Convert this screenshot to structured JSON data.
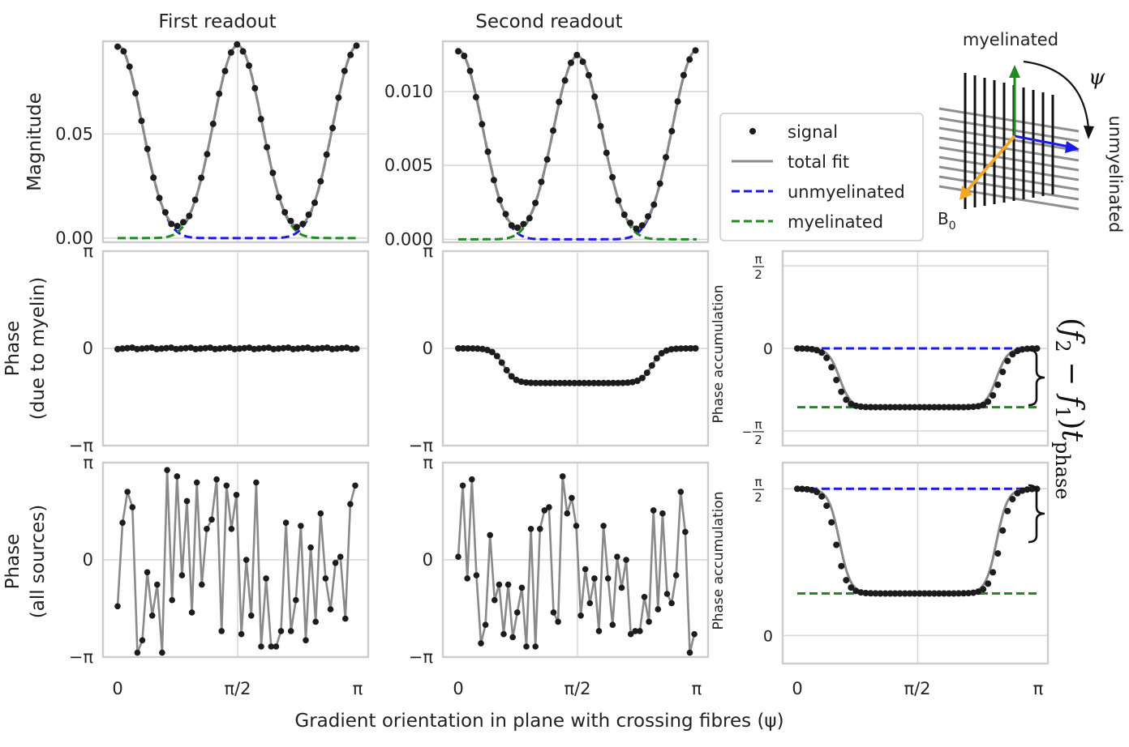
{
  "figure": {
    "col_titles": [
      "First readout",
      "Second readout"
    ],
    "row_labels": {
      "magnitude": [
        "Magnitude"
      ],
      "phase_myelin": [
        "Phase",
        "(due to myelin)"
      ],
      "phase_all": [
        "Phase",
        "(all sources)"
      ]
    },
    "accumulation_label": "Phase accumulation",
    "xlabel": "Gradient orientation in plane with crossing fibres (ψ)",
    "x_ticks": [
      "0",
      "π/2",
      "π"
    ],
    "phase_ticks": [
      "π",
      "0",
      "−π"
    ],
    "half_pi_ticks": {
      "num": "π",
      "den": "2",
      "neg": "−",
      "zero": "0"
    },
    "brace_formula": {
      "open": "(",
      "f2": "f",
      "sub2": "2",
      "minus": " − ",
      "f1": "f",
      "sub1": "1",
      "close": ")",
      "t": "t",
      "tsub": "phase"
    }
  },
  "legend": {
    "signal": "signal",
    "total_fit": "total fit",
    "unmyelinated": "unmyelinated",
    "myelinated": "myelinated"
  },
  "diagram": {
    "myelinated_label": "myelinated",
    "unmyelinated_label": "unmyelinated",
    "psi_label": "ψ",
    "b0_label": "B",
    "b0_sub": "0"
  },
  "colors": {
    "signal": "#1c1c1c",
    "fit": "#8a8a8a",
    "unmyelinated": "#1a1aee",
    "myelinated": "#1f8a1f",
    "b0": "#f5a623"
  },
  "chart_data": [
    {
      "id": "mag1",
      "type": "line",
      "title": "First readout",
      "ylabel": "Magnitude",
      "x_range": [
        0,
        3.1416
      ],
      "ylim": [
        -0.002,
        0.0945
      ],
      "yticks": [
        0.0,
        0.05
      ],
      "yticklabels": [
        "0.00",
        "0.05"
      ],
      "model": {
        "unmyelinated_peak": 0.0925,
        "myelinated_peak": 0.0925,
        "exponent": 10
      },
      "series": [
        "signal",
        "total fit",
        "unmyelinated",
        "myelinated"
      ]
    },
    {
      "id": "mag2",
      "type": "line",
      "title": "Second readout",
      "ylabel": "",
      "x_range": [
        0,
        3.1416
      ],
      "ylim": [
        -0.0002,
        0.0134
      ],
      "yticks": [
        0.0,
        0.005,
        0.01
      ],
      "yticklabels": [
        "0.000",
        "0.005",
        "0.010"
      ],
      "model": {
        "unmyelinated_peak": 0.0128,
        "myelinated_peak": 0.0124,
        "exponent": 10
      },
      "series": [
        "signal",
        "total fit",
        "unmyelinated",
        "myelinated"
      ]
    },
    {
      "id": "pm1",
      "type": "line",
      "ylabel": "Phase (due to myelin)",
      "x_range": [
        0,
        3.1416
      ],
      "ylim": [
        -3.1416,
        3.1416
      ],
      "values_summary": "constant 0 across all orientations",
      "plateau": 0.0
    },
    {
      "id": "pm2",
      "type": "line",
      "ylabel": "",
      "x_range": [
        0,
        3.1416
      ],
      "ylim": [
        -3.1416,
        3.1416
      ],
      "values_summary": "0 at edges, dips to about -1.12 around pi/2",
      "plateau": -1.12
    },
    {
      "id": "acc1",
      "type": "line",
      "ylabel": "Phase accumulation",
      "x_range": [
        0,
        3.1416
      ],
      "ylim": [
        -1.85,
        1.85
      ],
      "unmyelinated_level": 0.0,
      "myelinated_level": -1.12,
      "series": [
        "signal",
        "total fit",
        "unmyelinated",
        "myelinated"
      ]
    },
    {
      "id": "pa1",
      "type": "line",
      "ylabel": "Phase (all sources)",
      "x_range": [
        0,
        3.1416
      ],
      "ylim": [
        -3.1416,
        3.1416
      ],
      "values": [
        -1.5,
        1.2,
        2.2,
        1.7,
        -3.0,
        -2.6,
        -0.4,
        -1.8,
        -0.8,
        -3.0,
        2.9,
        -1.3,
        2.7,
        -0.5,
        1.9,
        -1.7,
        2.5,
        -0.8,
        1.0,
        1.3,
        2.6,
        -2.3,
        2.4,
        1.0,
        2.1,
        -2.4,
        0.0,
        -1.8,
        2.5,
        -2.8,
        -0.6,
        -2.8,
        -2.8,
        -2.3,
        1.2,
        -2.3,
        -1.3,
        1.1,
        -2.6,
        0.4,
        -2.0,
        1.5,
        -0.6,
        -1.6,
        -0.1,
        0.1,
        -1.9,
        1.8,
        2.4
      ]
    },
    {
      "id": "pa2",
      "type": "line",
      "ylabel": "",
      "x_range": [
        0,
        3.1416
      ],
      "ylim": [
        -3.1416,
        3.1416
      ],
      "values": [
        0.1,
        2.4,
        -0.6,
        2.6,
        -0.5,
        -2.7,
        -2.1,
        0.8,
        -1.3,
        -0.8,
        -2.4,
        -0.8,
        -2.5,
        -1.7,
        -0.9,
        -2.8,
        1.0,
        -2.8,
        1.0,
        1.6,
        1.7,
        -1.7,
        -2.0,
        2.7,
        1.5,
        2.0,
        1.1,
        -1.8,
        -0.3,
        -1.4,
        -0.6,
        -2.3,
        1.1,
        -0.6,
        -2.1,
        0.1,
        -0.9,
        0.0,
        -2.4,
        -2.3,
        -2.3,
        -1.2,
        -2.0,
        1.6,
        -1.6,
        1.5,
        -1.1,
        -1.4,
        -0.5,
        2.2,
        0.9,
        -3.0,
        -2.4
      ]
    },
    {
      "id": "acc2",
      "type": "line",
      "ylabel": "Phase accumulation",
      "x_range": [
        0,
        3.1416
      ],
      "ylim": [
        -0.3,
        1.85
      ],
      "unmyelinated_level": 1.5708,
      "myelinated_level": 0.45,
      "series": [
        "signal",
        "total fit",
        "unmyelinated",
        "myelinated"
      ]
    }
  ]
}
